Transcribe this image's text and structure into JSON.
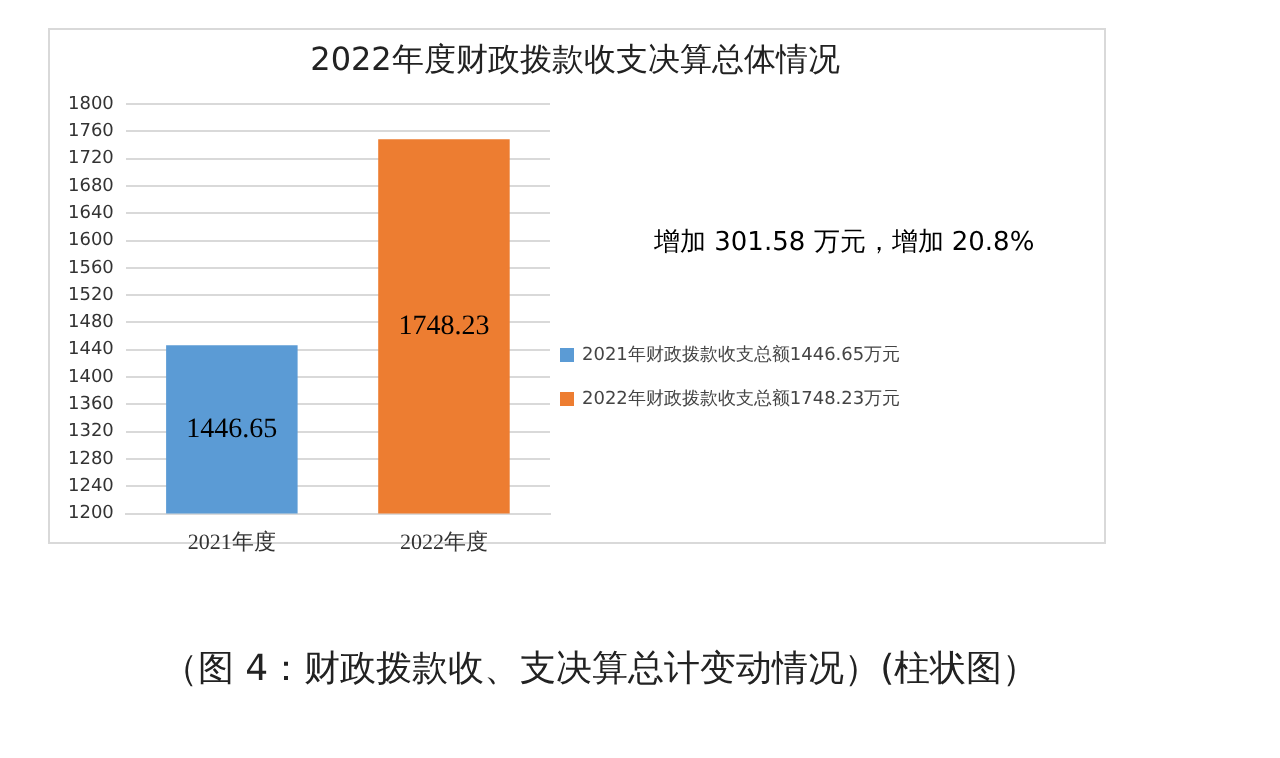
{
  "chart_data": {
    "type": "bar",
    "title": "2022年度财政拨款收支决算总体情况",
    "categories": [
      "2021年度",
      "2022年度"
    ],
    "series": [
      {
        "name": "2021年财政拨款收支总额1446.65万元",
        "color": "#5b9bd5",
        "values": [
          1446.65,
          null
        ]
      },
      {
        "name": "2022年财政拨款收支总额1748.23万元",
        "color": "#ed7d31",
        "values": [
          null,
          1748.23
        ]
      }
    ],
    "ylim": [
      1200,
      1800
    ],
    "yticks": [
      1200,
      1240,
      1280,
      1320,
      1360,
      1400,
      1440,
      1480,
      1520,
      1560,
      1600,
      1640,
      1680,
      1720,
      1760,
      1800
    ],
    "grid": "y",
    "legend": "right",
    "data_labels": true,
    "annotations": [
      "增加 301.58 万元，增加 20.8%",
      "（图 4：财政拨款收、支决算总计变动情况）(柱状图）"
    ]
  }
}
